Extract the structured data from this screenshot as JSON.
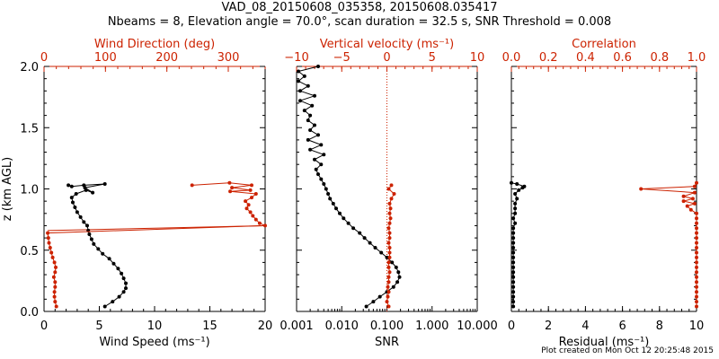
{
  "title": {
    "line1": "VAD_08_20150608_035358, 20150608.035417",
    "line2": "Nbeams = 8, Elevation angle = 70.0°, scan duration = 32.5 s, SNR Threshold = 0.008"
  },
  "footer": "Plot created on Mon Oct 12 20:25:48 2015",
  "colors": {
    "primary": "#000000",
    "secondary": "#cc2200"
  },
  "chart_data": [
    {
      "id": "wind",
      "type": "line",
      "ylabel": "z (km AGL)",
      "ylim": [
        0,
        2.0
      ],
      "yticks": [
        0.0,
        0.5,
        1.0,
        1.5,
        2.0
      ],
      "ytick_labels": [
        "0.0",
        "0.5",
        "1.0",
        "1.5",
        "2.0"
      ],
      "x_bottom": {
        "label": "Wind Speed (ms⁻¹)",
        "lim": [
          0,
          20
        ],
        "ticks": [
          0,
          5,
          10,
          15,
          20
        ],
        "tick_labels": [
          "0",
          "5",
          "10",
          "15",
          "20"
        ]
      },
      "x_top": {
        "label": "Wind Direction (deg)",
        "lim": [
          0,
          360
        ],
        "ticks": [
          0,
          100,
          200,
          300
        ],
        "tick_labels": [
          "0",
          "100",
          "200",
          "300"
        ]
      },
      "series": [
        {
          "name": "Wind Speed",
          "axis": "bottom",
          "color": "#000000",
          "points": [
            [
              5.5,
              0.04
            ],
            [
              6.2,
              0.08
            ],
            [
              6.8,
              0.12
            ],
            [
              7.2,
              0.16
            ],
            [
              7.4,
              0.19
            ],
            [
              7.4,
              0.23
            ],
            [
              7.2,
              0.27
            ],
            [
              7.0,
              0.31
            ],
            [
              6.7,
              0.35
            ],
            [
              6.3,
              0.39
            ],
            [
              5.9,
              0.43
            ],
            [
              5.3,
              0.47
            ],
            [
              4.9,
              0.51
            ],
            [
              4.5,
              0.55
            ],
            [
              4.3,
              0.59
            ],
            [
              4.1,
              0.63
            ],
            [
              4.0,
              0.66
            ],
            [
              3.9,
              0.7
            ],
            [
              3.6,
              0.73
            ],
            [
              3.3,
              0.77
            ],
            [
              3.0,
              0.81
            ],
            [
              2.8,
              0.85
            ],
            [
              2.6,
              0.89
            ],
            [
              2.5,
              0.93
            ],
            [
              2.9,
              0.96
            ],
            [
              3.8,
              0.99
            ],
            [
              4.4,
              0.97
            ],
            [
              3.7,
              1.01
            ],
            [
              5.5,
              1.04
            ],
            [
              3.6,
              1.03
            ],
            [
              2.5,
              1.02
            ],
            [
              2.2,
              1.03
            ]
          ]
        },
        {
          "name": "Wind Direction",
          "axis": "top",
          "color": "#cc2200",
          "points": [
            [
              20,
              0.04
            ],
            [
              18,
              0.08
            ],
            [
              17,
              0.12
            ],
            [
              17,
              0.16
            ],
            [
              18,
              0.2
            ],
            [
              18,
              0.24
            ],
            [
              16,
              0.28
            ],
            [
              18,
              0.32
            ],
            [
              19,
              0.36
            ],
            [
              17,
              0.4
            ],
            [
              14,
              0.44
            ],
            [
              12,
              0.48
            ],
            [
              10,
              0.52
            ],
            [
              8,
              0.56
            ],
            [
              7,
              0.6
            ],
            [
              6,
              0.64
            ],
            [
              360,
              0.7
            ],
            [
              351,
              0.72
            ],
            [
              345,
              0.75
            ],
            [
              340,
              0.78
            ],
            [
              336,
              0.81
            ],
            [
              330,
              0.84
            ],
            [
              333,
              0.87
            ],
            [
              328,
              0.9
            ],
            [
              338,
              0.93
            ],
            [
              345,
              0.96
            ],
            [
              303,
              0.98
            ],
            [
              336,
              0.99
            ],
            [
              306,
              1.01
            ],
            [
              338,
              1.03
            ],
            [
              302,
              1.05
            ],
            [
              241,
              1.03
            ]
          ]
        }
      ],
      "reference_line": {
        "axis": "top",
        "from": [
          6,
          0.66
        ],
        "to": [
          360,
          0.7
        ],
        "color": "#cc2200"
      }
    },
    {
      "id": "snr",
      "type": "line",
      "ylim": [
        0,
        2.0
      ],
      "x_bottom": {
        "label": "SNR",
        "scale": "log",
        "lim": [
          0.001,
          10
        ],
        "ticks": [
          0.001,
          0.01,
          0.1,
          1,
          10
        ],
        "tick_labels": [
          "0.001",
          "0.010",
          "0.100",
          "1.000",
          "10.000"
        ]
      },
      "x_top": {
        "label": "Vertical velocity (ms⁻¹)",
        "lim": [
          -10,
          10
        ],
        "ticks": [
          -10,
          -5,
          0,
          5,
          10
        ],
        "tick_labels": [
          "−10",
          "−5",
          "0",
          "5",
          "10"
        ]
      },
      "series": [
        {
          "name": "SNR",
          "axis": "bottom",
          "color": "#000000",
          "points": [
            [
              0.035,
              0.04
            ],
            [
              0.05,
              0.08
            ],
            [
              0.07,
              0.12
            ],
            [
              0.1,
              0.16
            ],
            [
              0.14,
              0.2
            ],
            [
              0.17,
              0.24
            ],
            [
              0.19,
              0.28
            ],
            [
              0.18,
              0.32
            ],
            [
              0.16,
              0.36
            ],
            [
              0.13,
              0.4
            ],
            [
              0.1,
              0.44
            ],
            [
              0.075,
              0.48
            ],
            [
              0.055,
              0.52
            ],
            [
              0.042,
              0.56
            ],
            [
              0.032,
              0.6
            ],
            [
              0.025,
              0.64
            ],
            [
              0.018,
              0.68
            ],
            [
              0.014,
              0.72
            ],
            [
              0.011,
              0.76
            ],
            [
              0.009,
              0.8
            ],
            [
              0.0075,
              0.84
            ],
            [
              0.0065,
              0.88
            ],
            [
              0.0055,
              0.92
            ],
            [
              0.005,
              0.96
            ],
            [
              0.0045,
              1.0
            ],
            [
              0.004,
              1.04
            ],
            [
              0.0035,
              1.08
            ],
            [
              0.003,
              1.12
            ],
            [
              0.0027,
              1.16
            ],
            [
              0.0035,
              1.2
            ],
            [
              0.0025,
              1.24
            ],
            [
              0.004,
              1.28
            ],
            [
              0.002,
              1.32
            ],
            [
              0.0035,
              1.36
            ],
            [
              0.0018,
              1.4
            ],
            [
              0.003,
              1.44
            ],
            [
              0.002,
              1.48
            ],
            [
              0.0025,
              1.52
            ],
            [
              0.0018,
              1.56
            ],
            [
              0.002,
              1.6
            ],
            [
              0.0015,
              1.64
            ],
            [
              0.0022,
              1.68
            ],
            [
              0.0012,
              1.72
            ],
            [
              0.0025,
              1.76
            ],
            [
              0.0012,
              1.8
            ],
            [
              0.0018,
              1.84
            ],
            [
              0.0011,
              1.88
            ],
            [
              0.0015,
              1.92
            ],
            [
              0.0011,
              1.96
            ],
            [
              0.003,
              2.0
            ]
          ]
        },
        {
          "name": "Vertical velocity",
          "axis": "top",
          "color": "#cc2200",
          "points": [
            [
              0.2,
              0.04
            ],
            [
              0.0,
              0.08
            ],
            [
              0.1,
              0.12
            ],
            [
              0.2,
              0.16
            ],
            [
              0.1,
              0.2
            ],
            [
              0.2,
              0.24
            ],
            [
              0.2,
              0.28
            ],
            [
              0.3,
              0.32
            ],
            [
              0.2,
              0.36
            ],
            [
              0.2,
              0.4
            ],
            [
              0.3,
              0.44
            ],
            [
              0.3,
              0.48
            ],
            [
              0.3,
              0.52
            ],
            [
              0.2,
              0.56
            ],
            [
              0.3,
              0.6
            ],
            [
              0.3,
              0.64
            ],
            [
              0.2,
              0.68
            ],
            [
              0.3,
              0.72
            ],
            [
              0.4,
              0.76
            ],
            [
              0.3,
              0.8
            ],
            [
              0.4,
              0.84
            ],
            [
              0.3,
              0.88
            ],
            [
              0.5,
              0.92
            ],
            [
              0.8,
              0.96
            ],
            [
              0.2,
              1.0
            ],
            [
              0.5,
              1.03
            ]
          ]
        }
      ],
      "reference_line": {
        "axis": "top",
        "value": 0,
        "style": "dotted",
        "color": "#cc2200"
      }
    },
    {
      "id": "residual",
      "type": "line",
      "ylim": [
        0,
        2.0
      ],
      "x_bottom": {
        "label": "Residual (ms⁻¹)",
        "lim": [
          0,
          10
        ],
        "ticks": [
          0,
          2,
          4,
          6,
          8,
          10
        ],
        "tick_labels": [
          "0",
          "2",
          "4",
          "6",
          "8",
          "10"
        ]
      },
      "x_top": {
        "label": "Correlation",
        "lim": [
          0,
          1
        ],
        "ticks": [
          0,
          0.2,
          0.4,
          0.6,
          0.8,
          1.0
        ],
        "tick_labels": [
          "0.0",
          "0.2",
          "0.4",
          "0.6",
          "0.8",
          "1.0"
        ]
      },
      "series": [
        {
          "name": "Residual",
          "axis": "bottom",
          "color": "#000000",
          "points": [
            [
              0.1,
              0.04
            ],
            [
              0.1,
              0.08
            ],
            [
              0.1,
              0.12
            ],
            [
              0.1,
              0.16
            ],
            [
              0.1,
              0.2
            ],
            [
              0.1,
              0.24
            ],
            [
              0.1,
              0.28
            ],
            [
              0.1,
              0.32
            ],
            [
              0.1,
              0.36
            ],
            [
              0.1,
              0.4
            ],
            [
              0.1,
              0.44
            ],
            [
              0.1,
              0.48
            ],
            [
              0.1,
              0.52
            ],
            [
              0.1,
              0.56
            ],
            [
              0.1,
              0.6
            ],
            [
              0.1,
              0.64
            ],
            [
              0.1,
              0.68
            ],
            [
              0.2,
              0.72
            ],
            [
              0.1,
              0.76
            ],
            [
              0.2,
              0.8
            ],
            [
              0.2,
              0.84
            ],
            [
              0.2,
              0.88
            ],
            [
              0.3,
              0.92
            ],
            [
              0.2,
              0.96
            ],
            [
              0.4,
              0.99
            ],
            [
              0.6,
              1.01
            ],
            [
              0.7,
              1.02
            ],
            [
              0.3,
              1.04
            ],
            [
              0.0,
              1.05
            ]
          ]
        },
        {
          "name": "Correlation",
          "axis": "top",
          "color": "#cc2200",
          "points": [
            [
              1.0,
              0.04
            ],
            [
              1.0,
              0.08
            ],
            [
              1.0,
              0.12
            ],
            [
              1.0,
              0.16
            ],
            [
              1.0,
              0.2
            ],
            [
              1.0,
              0.24
            ],
            [
              1.0,
              0.28
            ],
            [
              1.0,
              0.32
            ],
            [
              1.0,
              0.36
            ],
            [
              1.0,
              0.4
            ],
            [
              1.0,
              0.44
            ],
            [
              1.0,
              0.48
            ],
            [
              1.0,
              0.52
            ],
            [
              1.0,
              0.56
            ],
            [
              1.0,
              0.6
            ],
            [
              1.0,
              0.64
            ],
            [
              1.0,
              0.68
            ],
            [
              1.0,
              0.72
            ],
            [
              1.0,
              0.76
            ],
            [
              1.0,
              0.8
            ],
            [
              0.97,
              0.83
            ],
            [
              0.95,
              0.86
            ],
            [
              0.99,
              0.88
            ],
            [
              0.93,
              0.9
            ],
            [
              0.98,
              0.92
            ],
            [
              0.93,
              0.94
            ],
            [
              0.99,
              0.97
            ],
            [
              0.7,
              1.0
            ],
            [
              0.99,
              1.02
            ],
            [
              1.0,
              1.05
            ]
          ]
        }
      ]
    }
  ]
}
